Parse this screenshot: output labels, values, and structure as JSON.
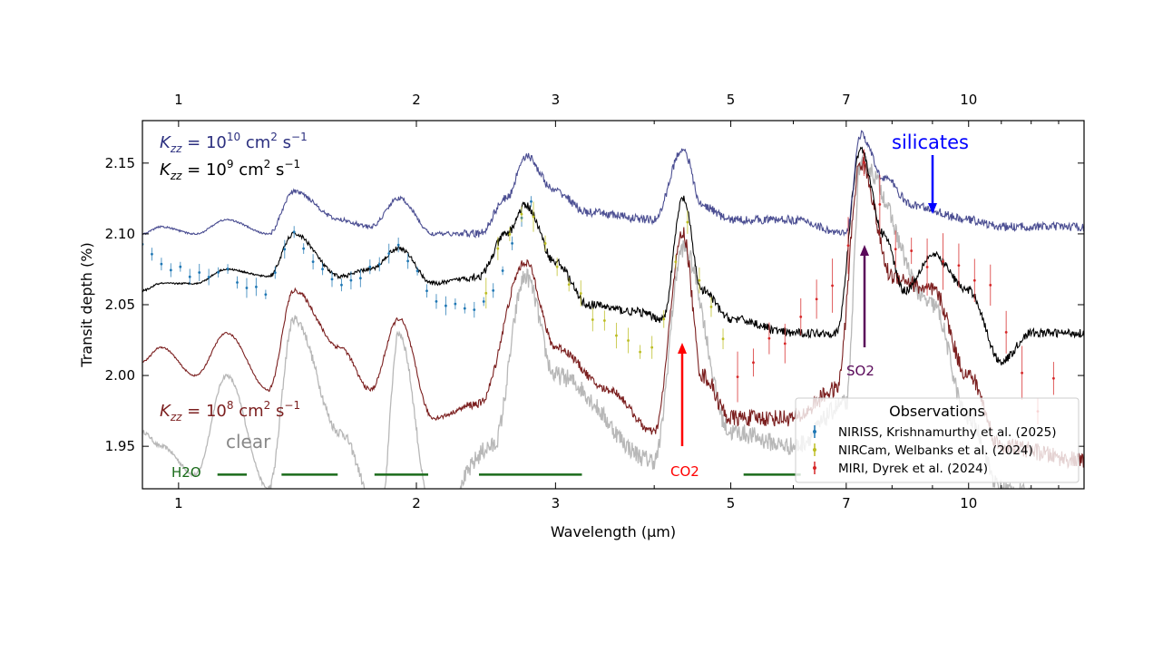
{
  "chart_data": {
    "type": "line",
    "xlabel": "Wavelength (μm)",
    "ylabel": "Transit depth (%)",
    "xscale": "log",
    "xlim": [
      0.9,
      14
    ],
    "ylim": [
      1.92,
      2.18
    ],
    "xticks": [
      1,
      2,
      3,
      5,
      7,
      10
    ],
    "xtick_labels": [
      "1",
      "2",
      "3",
      "5",
      "7",
      "10"
    ],
    "yticks": [
      1.95,
      2.0,
      2.05,
      2.1,
      2.15
    ],
    "ytick_labels": [
      "1.95",
      "2.00",
      "2.05",
      "2.10",
      "2.15"
    ],
    "grid": false,
    "series": [
      {
        "name": "Kzz = 10^10 cm^2 s^-1",
        "label_parts": [
          "K",
          "zz",
          " = 10",
          "10",
          " cm",
          "2",
          " s",
          "−1"
        ],
        "color": "#2b2f7f",
        "x": [
          0.9,
          0.95,
          1.05,
          1.15,
          1.3,
          1.4,
          1.6,
          1.75,
          1.9,
          2.1,
          2.4,
          2.6,
          2.75,
          3.0,
          3.3,
          4.0,
          4.35,
          4.6,
          5.0,
          6.0,
          7.0,
          7.3,
          7.8,
          8.5,
          10,
          11,
          14
        ],
        "y": [
          2.1,
          2.105,
          2.1,
          2.11,
          2.1,
          2.13,
          2.11,
          2.105,
          2.125,
          2.1,
          2.1,
          2.125,
          2.155,
          2.13,
          2.115,
          2.11,
          2.16,
          2.12,
          2.11,
          2.11,
          2.1,
          2.17,
          2.14,
          2.12,
          2.11,
          2.105,
          2.105
        ]
      },
      {
        "name": "Kzz = 10^9 cm^2 s^-1",
        "label_parts": [
          "K",
          "zz",
          " = 10",
          "9",
          " cm",
          "2",
          " s",
          "−1"
        ],
        "color": "#000000",
        "x": [
          0.9,
          0.95,
          1.05,
          1.15,
          1.3,
          1.4,
          1.6,
          1.75,
          1.9,
          2.1,
          2.4,
          2.6,
          2.75,
          3.0,
          3.3,
          3.8,
          4.1,
          4.35,
          4.6,
          5.0,
          6.0,
          6.8,
          7.3,
          7.8,
          8.3,
          9.0,
          10,
          11,
          12,
          14
        ],
        "y": [
          2.06,
          2.065,
          2.065,
          2.075,
          2.07,
          2.1,
          2.07,
          2.075,
          2.09,
          2.065,
          2.07,
          2.1,
          2.12,
          2.08,
          2.05,
          2.045,
          2.04,
          2.125,
          2.06,
          2.04,
          2.03,
          2.03,
          2.16,
          2.1,
          2.06,
          2.085,
          2.06,
          2.01,
          2.03,
          2.03
        ]
      },
      {
        "name": "Kzz = 10^8 cm^2 s^-1",
        "label_parts": [
          "K",
          "zz",
          " = 10",
          "8",
          " cm",
          "2",
          " s",
          "−1"
        ],
        "color": "#7b1f1f",
        "x": [
          0.9,
          0.95,
          1.05,
          1.15,
          1.3,
          1.4,
          1.6,
          1.75,
          1.9,
          2.1,
          2.4,
          2.75,
          3.0,
          3.5,
          4.0,
          4.35,
          4.6,
          5.0,
          6.0,
          6.8,
          7.3,
          8.0,
          9.0,
          10,
          11,
          14
        ],
        "y": [
          2.01,
          2.02,
          2.0,
          2.03,
          1.99,
          2.06,
          2.02,
          1.99,
          2.04,
          1.97,
          1.98,
          2.08,
          2.02,
          1.99,
          1.96,
          2.1,
          2.0,
          1.97,
          1.97,
          1.99,
          2.15,
          2.07,
          2.06,
          2.0,
          1.95,
          1.94
        ]
      },
      {
        "name": "clear",
        "color": "#b8b8b8",
        "x": [
          0.9,
          0.95,
          1.05,
          1.15,
          1.3,
          1.4,
          1.6,
          1.8,
          1.9,
          2.1,
          2.5,
          2.75,
          3.0,
          4.0,
          4.35,
          5.0,
          6.0,
          7.0,
          7.3,
          9.0,
          10,
          11,
          14
        ],
        "y": [
          1.96,
          1.95,
          1.93,
          2.0,
          1.92,
          2.04,
          1.96,
          1.9,
          2.03,
          1.9,
          1.95,
          2.07,
          2.0,
          1.94,
          2.09,
          1.96,
          1.95,
          1.98,
          2.15,
          2.05,
          1.97,
          1.92,
          1.9
        ]
      }
    ],
    "observations": {
      "title": "Observations",
      "datasets": [
        {
          "name": "NIRISS, Krishnamurthy et al. (2025)",
          "color": "#1f77b4",
          "err": 0.005,
          "x": [
            0.9,
            0.95,
            1.0,
            1.05,
            1.1,
            1.15,
            1.2,
            1.25,
            1.3,
            1.35,
            1.4,
            1.45,
            1.5,
            1.6,
            1.7,
            1.8,
            1.9,
            2.0,
            2.1,
            2.2,
            2.3,
            2.4,
            2.5,
            2.6,
            2.7,
            2.8
          ],
          "y": [
            2.09,
            2.08,
            2.075,
            2.07,
            2.07,
            2.075,
            2.065,
            2.06,
            2.06,
            2.085,
            2.1,
            2.09,
            2.075,
            2.065,
            2.07,
            2.08,
            2.09,
            2.075,
            2.055,
            2.05,
            2.045,
            2.05,
            2.06,
            2.08,
            2.11,
            2.12
          ]
        },
        {
          "name": "NIRCam, Welbanks et al. (2024)",
          "color": "#bcbd22",
          "err": 0.008,
          "x": [
            2.45,
            2.6,
            2.75,
            2.9,
            3.0,
            3.2,
            3.4,
            3.6,
            3.8,
            4.0,
            4.2,
            4.35,
            4.5,
            4.7,
            4.9,
            5.0
          ],
          "y": [
            2.06,
            2.1,
            2.12,
            2.09,
            2.08,
            2.06,
            2.04,
            2.03,
            2.02,
            2.015,
            2.05,
            2.13,
            2.07,
            2.05,
            2.03,
            2.02
          ]
        },
        {
          "name": "MIRI, Dyrek et al. (2024)",
          "color": "#d62728",
          "err": 0.015,
          "x": [
            5.1,
            5.5,
            6.0,
            6.5,
            7.0,
            7.3,
            7.6,
            8.0,
            8.5,
            9.0,
            9.5,
            10,
            10.5,
            11,
            11.5,
            12,
            12.5,
            13
          ],
          "y": [
            2.0,
            2.02,
            2.03,
            2.05,
            2.09,
            2.15,
            2.13,
            2.09,
            2.08,
            2.085,
            2.08,
            2.07,
            2.06,
            2.04,
            2.0,
            1.98,
            1.96,
            2.02
          ]
        }
      ]
    },
    "annotations": {
      "clear": "clear",
      "h2o": "H2O",
      "co2": "CO2",
      "so2": "SO2",
      "silicates": "silicates",
      "h2o_bands": [
        [
          1.12,
          1.22
        ],
        [
          1.35,
          1.59
        ],
        [
          1.77,
          2.07
        ],
        [
          2.4,
          3.24
        ],
        [
          5.19,
          6.13
        ]
      ],
      "colors": {
        "h2o": "#1a6b1a",
        "co2": "#ff0000",
        "so2": "#5a0a5a",
        "silicates": "#0000ff"
      }
    }
  }
}
